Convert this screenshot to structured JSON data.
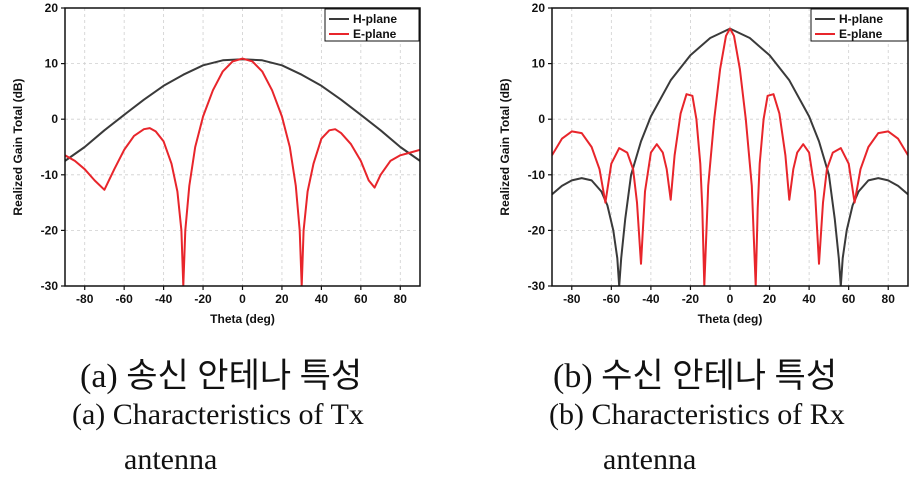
{
  "chart_data": [
    {
      "type": "line",
      "id": "a",
      "xlabel": "Theta (deg)",
      "ylabel": "Realized Gain Total (dB)",
      "xlim": [
        -90,
        90
      ],
      "ylim": [
        -30,
        20
      ],
      "xticks": [
        -80,
        -60,
        -40,
        -20,
        0,
        20,
        40,
        60,
        80
      ],
      "yticks": [
        -30,
        -20,
        -10,
        0,
        10,
        20
      ],
      "grid": true,
      "legend_position": "top-right",
      "series": [
        {
          "name": "H-plane",
          "color": "#3a3a3a",
          "x": [
            -90,
            -80,
            -70,
            -60,
            -50,
            -40,
            -30,
            -20,
            -10,
            0,
            10,
            20,
            30,
            40,
            50,
            60,
            70,
            80,
            90
          ],
          "y": [
            -7.5,
            -5,
            -2,
            0.8,
            3.5,
            6,
            8,
            9.7,
            10.6,
            10.8,
            10.6,
            9.7,
            8,
            6,
            3.5,
            0.8,
            -2,
            -5,
            -7.5
          ]
        },
        {
          "name": "E-plane",
          "color": "#e8252b",
          "x": [
            -90,
            -85,
            -80,
            -75,
            -70,
            -65,
            -60,
            -55,
            -50,
            -47,
            -44,
            -40,
            -36,
            -33,
            -31,
            -30,
            -29,
            -27,
            -24,
            -20,
            -15,
            -10,
            -5,
            0,
            5,
            10,
            15,
            20,
            24,
            27,
            29,
            30,
            31,
            33,
            36,
            40,
            44,
            47,
            50,
            55,
            60,
            64,
            67,
            70,
            75,
            80,
            85,
            90
          ],
          "y": [
            -6.5,
            -7.5,
            -9,
            -11,
            -12.7,
            -9,
            -5.5,
            -3,
            -1.8,
            -1.6,
            -2.2,
            -4,
            -8,
            -13,
            -20,
            -30,
            -20,
            -12,
            -5,
            0.5,
            5.2,
            8.6,
            10.4,
            10.9,
            10.4,
            8.6,
            5.2,
            0.5,
            -5,
            -12,
            -20,
            -30,
            -20,
            -13,
            -8,
            -3.5,
            -2,
            -1.8,
            -2.5,
            -4.5,
            -7.5,
            -11,
            -12.3,
            -10,
            -7.5,
            -6.5,
            -6,
            -5.5
          ]
        }
      ]
    },
    {
      "type": "line",
      "id": "b",
      "xlabel": "Theta (deg)",
      "ylabel": "Realized Gain Total (dB)",
      "xlim": [
        -90,
        90
      ],
      "ylim": [
        -30,
        20
      ],
      "xticks": [
        -80,
        -60,
        -40,
        -20,
        0,
        20,
        40,
        60,
        80
      ],
      "yticks": [
        -30,
        -20,
        -10,
        0,
        10,
        20
      ],
      "grid": true,
      "legend_position": "top-right",
      "series": [
        {
          "name": "H-plane",
          "color": "#3a3a3a",
          "x": [
            -90,
            -85,
            -80,
            -75,
            -70,
            -65,
            -62,
            -59,
            -57,
            -56,
            -55,
            -53,
            -50,
            -45,
            -40,
            -30,
            -20,
            -10,
            0,
            10,
            20,
            30,
            40,
            45,
            50,
            53,
            55,
            56,
            57,
            59,
            62,
            65,
            70,
            75,
            80,
            85,
            90
          ],
          "y": [
            -13.5,
            -12,
            -11,
            -10.6,
            -11,
            -13,
            -15.5,
            -20,
            -25,
            -30,
            -25,
            -18,
            -10,
            -4,
            0.5,
            7,
            11.5,
            14.6,
            16.3,
            14.6,
            11.5,
            7,
            0.5,
            -4,
            -10,
            -18,
            -25,
            -30,
            -25,
            -20,
            -15.5,
            -13,
            -11,
            -10.6,
            -11,
            -12,
            -13.5
          ]
        },
        {
          "name": "E-plane",
          "color": "#e8252b",
          "x": [
            -90,
            -85,
            -80,
            -75,
            -70,
            -66,
            -63,
            -60,
            -56,
            -52,
            -49,
            -47,
            -45,
            -43,
            -40,
            -37,
            -34,
            -32,
            -30,
            -28,
            -25,
            -22,
            -19,
            -17,
            -15,
            -14,
            -13,
            -11,
            -8,
            -5,
            -2,
            0,
            2,
            5,
            8,
            11,
            13,
            14,
            15,
            17,
            19,
            22,
            25,
            28,
            30,
            32,
            34,
            37,
            40,
            43,
            45,
            47,
            49,
            52,
            56,
            60,
            63,
            66,
            70,
            75,
            80,
            85,
            90
          ],
          "y": [
            -6.5,
            -3.5,
            -2.2,
            -2.5,
            -5,
            -9,
            -15,
            -8,
            -5.2,
            -6,
            -9,
            -15,
            -26,
            -13,
            -6,
            -4.5,
            -6,
            -9,
            -14.5,
            -6.5,
            1,
            4.5,
            4.2,
            0,
            -8,
            -16,
            -30,
            -12,
            0,
            9,
            15,
            16.3,
            15,
            9,
            0,
            -12,
            -30,
            -16,
            -8,
            0,
            4.2,
            4.5,
            1,
            -6.5,
            -14.5,
            -9,
            -6,
            -4.5,
            -6,
            -13,
            -26,
            -15,
            -9,
            -6,
            -5.2,
            -8,
            -15,
            -9,
            -5,
            -2.5,
            -2.2,
            -3.5,
            -6.5
          ]
        }
      ]
    }
  ],
  "captions": {
    "a": {
      "korean": "(a) 송신 안테나 특성",
      "english_line1": "(a) Characteristics of Tx",
      "english_line2": "antenna"
    },
    "b": {
      "korean": "(b) 수신 안테나 특성",
      "english_line1": "(b) Characteristics of Rx",
      "english_line2": "antenna"
    }
  }
}
